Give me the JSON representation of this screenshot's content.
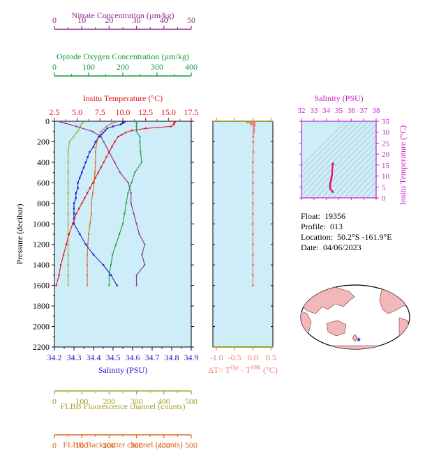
{
  "colors": {
    "nitrate": "#8b2a8b",
    "oxygen": "#169a3c",
    "temperature": "#e8141a",
    "salinity": "#1a1acd",
    "fluorescence": "#a4a02c",
    "backscatter": "#e0661a",
    "delta_t": "#f07878",
    "ts_axis": "#c81ec8",
    "plot_bg": "#cdeef8",
    "land": "#f4b7b7"
  },
  "info": {
    "float_label": "Float:",
    "float_value": "19356",
    "profile_label": "Profile:",
    "profile_value": "013",
    "location_label": "Location:",
    "location_value": "50.2°S  -161.9°E",
    "date_label": "Date:",
    "date_value": "04/06/2023"
  },
  "chart_data": [
    {
      "type": "line",
      "panel": "profiles",
      "ylabel": "Pressure (decibar)",
      "ylim": [
        2200,
        0
      ],
      "yticks": [
        0,
        200,
        400,
        600,
        800,
        1000,
        1200,
        1400,
        1600,
        1800,
        2000,
        2200
      ],
      "axes": {
        "nitrate": {
          "label": "Nitrate Concentration (µm/kg)",
          "range": [
            0,
            50
          ],
          "ticks": [
            0,
            10,
            20,
            30,
            40,
            50
          ]
        },
        "oxygen": {
          "label": "Optode Oxygen Concentration (µm/kg)",
          "range": [
            0,
            400
          ],
          "ticks": [
            0,
            100,
            200,
            300,
            400
          ]
        },
        "temperature": {
          "label": "Insitu Temperature (°C)",
          "range": [
            2.5,
            17.5
          ],
          "ticks": [
            "2.5",
            "5.0",
            "7.5",
            "10.0",
            "12.5",
            "15.0",
            "17.5"
          ]
        },
        "salinity": {
          "label": "Salinity (PSU)",
          "range": [
            34.2,
            34.9
          ],
          "ticks": [
            "34.2",
            "34.3",
            "34.4",
            "34.5",
            "34.6",
            "34.7",
            "34.8",
            "34.9"
          ]
        },
        "fluorescence": {
          "label": "FLBB Fluorescence channel (counts)",
          "range": [
            0,
            500
          ],
          "ticks": [
            0,
            100,
            200,
            300,
            400,
            500
          ]
        },
        "backscatter": {
          "label": "FLBB Backscatter channel (counts)",
          "range": [
            0,
            500
          ],
          "ticks": [
            0,
            100,
            200,
            300,
            400,
            500
          ]
        }
      },
      "series": [
        {
          "key": "temperature",
          "p": [
            5,
            10,
            20,
            30,
            50,
            70,
            90,
            110,
            130,
            150,
            200,
            250,
            300,
            350,
            400,
            450,
            500,
            550,
            600,
            650,
            700,
            750,
            800,
            850,
            900,
            950,
            1000,
            1100,
            1200,
            1300,
            1400,
            1500,
            1600
          ],
          "values": [
            15.7,
            15.7,
            15.6,
            15.6,
            15.3,
            12.5,
            11.0,
            10.3,
            9.9,
            9.5,
            9.1,
            8.8,
            8.5,
            8.2,
            7.9,
            7.6,
            7.3,
            7.0,
            6.7,
            6.4,
            6.1,
            5.8,
            5.5,
            5.2,
            4.9,
            4.7,
            4.5,
            4.1,
            3.8,
            3.5,
            3.2,
            3.0,
            2.7
          ]
        },
        {
          "key": "salinity",
          "p": [
            5,
            10,
            20,
            30,
            50,
            70,
            90,
            110,
            130,
            150,
            200,
            250,
            300,
            350,
            400,
            450,
            500,
            550,
            600,
            650,
            700,
            750,
            800,
            850,
            900,
            950,
            1000,
            1100,
            1200,
            1300,
            1400,
            1500,
            1600
          ],
          "values": [
            34.56,
            34.55,
            34.55,
            34.54,
            34.5,
            34.47,
            34.46,
            34.45,
            34.44,
            34.43,
            34.41,
            34.4,
            34.38,
            34.37,
            34.36,
            34.35,
            34.34,
            34.33,
            34.32,
            34.32,
            34.31,
            34.31,
            34.3,
            34.3,
            34.3,
            34.3,
            34.3,
            34.33,
            34.36,
            34.4,
            34.45,
            34.49,
            34.52
          ]
        },
        {
          "key": "nitrate",
          "p": [
            5,
            20,
            50,
            100,
            150,
            200,
            300,
            400,
            500,
            600,
            700,
            800,
            900,
            1000,
            1100,
            1200,
            1300,
            1400,
            1500,
            1600
          ],
          "values": [
            2,
            4,
            8,
            14,
            17,
            18,
            20,
            22,
            24,
            27,
            28,
            28,
            29,
            30,
            31,
            33,
            32,
            33,
            30,
            30
          ]
        },
        {
          "key": "oxygen",
          "p": [
            5,
            20,
            50,
            100,
            150,
            200,
            300,
            400,
            500,
            600,
            700,
            800,
            900,
            1000,
            1100,
            1200,
            1300,
            1400,
            1500,
            1600
          ],
          "values": [
            240,
            240,
            240,
            240,
            250,
            250,
            252,
            255,
            235,
            225,
            215,
            210,
            205,
            200,
            190,
            180,
            170,
            165,
            160,
            160
          ]
        },
        {
          "key": "fluorescence",
          "p": [
            5,
            20,
            50,
            100,
            150,
            200,
            300,
            400,
            500,
            600,
            700,
            800,
            900,
            1000,
            1100,
            1200,
            1300,
            1400,
            1500,
            1600
          ],
          "values": [
            110,
            100,
            95,
            85,
            70,
            55,
            50,
            50,
            50,
            50,
            50,
            50,
            50,
            50,
            50,
            50,
            50,
            50,
            50,
            50
          ]
        },
        {
          "key": "backscatter",
          "p": [
            5,
            20,
            50,
            100,
            150,
            200,
            300,
            400,
            500,
            600,
            700,
            800,
            900,
            1000,
            1100,
            1200,
            1300,
            1400,
            1500,
            1600
          ],
          "values": [
            225,
            210,
            190,
            170,
            160,
            155,
            150,
            150,
            148,
            145,
            140,
            135,
            135,
            130,
            125,
            122,
            120,
            120,
            120,
            120
          ]
        }
      ]
    },
    {
      "type": "scatter",
      "panel": "delta_t",
      "xlabel_main": "ΔT= T",
      "xlabel_sup1": "Opt",
      "xlabel_mid": " - T",
      "xlabel_sup2": "SBE",
      "xlabel_end": " (°C)",
      "xlim": [
        -1.1,
        0.55
      ],
      "xticks": [
        "-1.0",
        "-0.5",
        "0.0",
        "0.5"
      ],
      "series": [
        {
          "name": "",
          "p": [
            5,
            10,
            20,
            30,
            40,
            50,
            70,
            90,
            110,
            150,
            200,
            300,
            400,
            500,
            600,
            700,
            800,
            900,
            1000,
            1100,
            1200,
            1300,
            1400,
            1500,
            1600
          ],
          "values": [
            0.05,
            -0.15,
            0.03,
            -0.05,
            0.05,
            0.02,
            0.03,
            0.02,
            0.02,
            0.01,
            0.01,
            0.01,
            0.0,
            0.0,
            0.0,
            0.0,
            0.0,
            0.0,
            0.0,
            0.0,
            0.0,
            0.0,
            0.0,
            0.0,
            0.0
          ]
        }
      ]
    },
    {
      "type": "scatter",
      "panel": "ts_diagram",
      "xlabel": "Salinity (PSU)",
      "ylabel": "Insitu Temperature (°C)",
      "xlim": [
        32,
        38
      ],
      "ylim": [
        0,
        35
      ],
      "xticks": [
        32,
        33,
        34,
        35,
        36,
        37,
        38
      ],
      "yticks": [
        0,
        5,
        10,
        15,
        20,
        25,
        30,
        35
      ],
      "series": [
        {
          "name": "",
          "salinity": [
            34.55,
            34.56,
            34.5,
            34.45,
            34.42,
            34.4,
            34.37,
            34.34,
            34.32,
            34.3,
            34.3,
            34.3,
            34.36,
            34.45,
            34.52
          ],
          "temperature": [
            15.7,
            15.6,
            15.3,
            10.3,
            9.5,
            8.8,
            8.2,
            7.3,
            6.7,
            5.8,
            5.2,
            4.5,
            3.8,
            3.2,
            2.7
          ]
        }
      ]
    }
  ]
}
